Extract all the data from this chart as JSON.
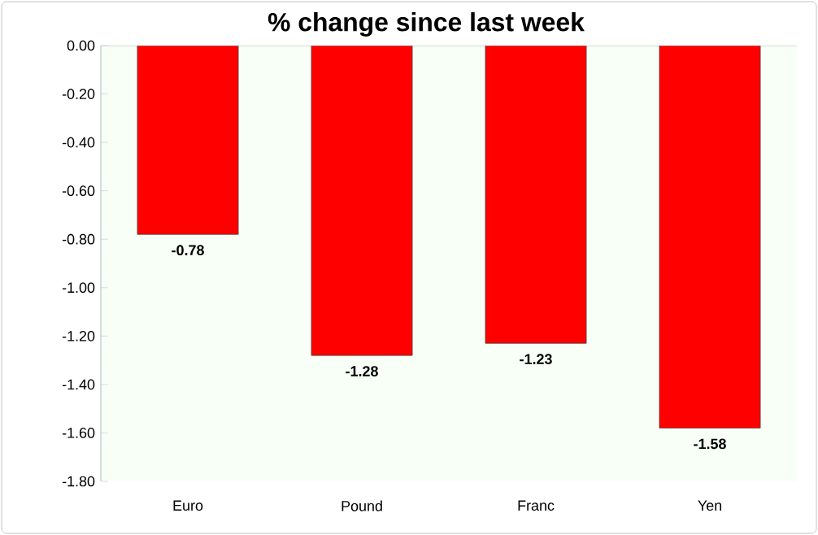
{
  "chart_data": {
    "type": "bar",
    "title": "% change since last week",
    "categories": [
      "Euro",
      "Pound",
      "Franc",
      "Yen"
    ],
    "values": [
      -0.78,
      -1.28,
      -1.23,
      -1.58
    ],
    "color": "#ff0000",
    "data_labels": true,
    "ylim": [
      -1.8,
      0
    ],
    "yticks": [
      {
        "value": 0,
        "label": "0.00"
      },
      {
        "value": -0.2,
        "label": "-0.20"
      },
      {
        "value": -0.4,
        "label": "-0.40"
      },
      {
        "value": -0.6,
        "label": "-0.60"
      },
      {
        "value": -0.8,
        "label": "-0.80"
      },
      {
        "value": -1.0,
        "label": "-1.00"
      },
      {
        "value": -1.2,
        "label": "-1.20"
      },
      {
        "value": -1.4,
        "label": "-1.40"
      },
      {
        "value": -1.6,
        "label": "-1.60"
      },
      {
        "value": -1.8,
        "label": "-1.80"
      }
    ],
    "grid": false
  }
}
